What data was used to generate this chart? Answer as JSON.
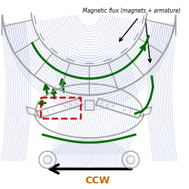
{
  "title": "Magnetic flux (magnets + armature)",
  "ccw_label": "CCW",
  "bg_color": "#ffffff",
  "flux_color": "#7788cc",
  "stator_color": "#999999",
  "green_color": "#006600",
  "red_color": "#cc0000",
  "black": "#000000",
  "ccw_color": "#cc6600",
  "title_fontsize": 5.5,
  "ccw_fontsize": 10,
  "figsize": [
    2.7,
    2.7
  ],
  "dpi": 100
}
